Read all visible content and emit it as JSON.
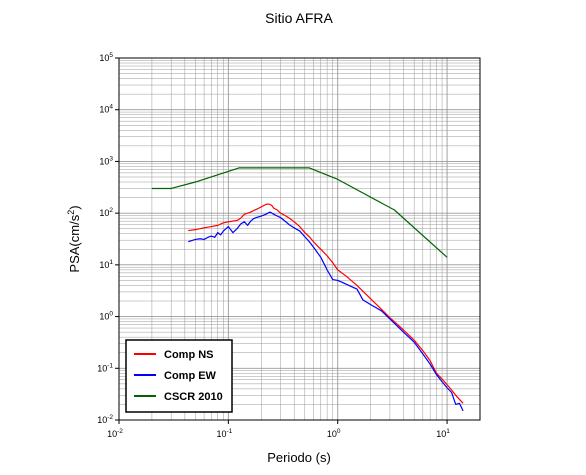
{
  "chart_data": {
    "type": "line",
    "title": "Sitio AFRA",
    "xlabel": "Periodo (s)",
    "ylabel_base": "PSA(cm/s",
    "ylabel_sup": "2",
    "ylabel_end": ")",
    "x_scale": "log",
    "y_scale": "log",
    "xlim": [
      0.01,
      20
    ],
    "ylim": [
      0.01,
      100000
    ],
    "grid": true,
    "legend_position": "bottom-left",
    "x_ticks": [
      {
        "base": "10",
        "exp": "-2",
        "value": 0.01
      },
      {
        "base": "10",
        "exp": "-1",
        "value": 0.1
      },
      {
        "base": "10",
        "exp": "0",
        "value": 1
      },
      {
        "base": "10",
        "exp": "1",
        "value": 10
      }
    ],
    "y_ticks": [
      {
        "base": "10",
        "exp": "-2",
        "value": 0.01
      },
      {
        "base": "10",
        "exp": "-1",
        "value": 0.1
      },
      {
        "base": "10",
        "exp": "0",
        "value": 1
      },
      {
        "base": "10",
        "exp": "1",
        "value": 10
      },
      {
        "base": "10",
        "exp": "2",
        "value": 100
      },
      {
        "base": "10",
        "exp": "3",
        "value": 1000
      },
      {
        "base": "10",
        "exp": "4",
        "value": 10000
      },
      {
        "base": "10",
        "exp": "5",
        "value": 100000
      }
    ],
    "series": [
      {
        "name": "Comp NS",
        "color": "#ff0000",
        "points": [
          [
            0.043,
            46
          ],
          [
            0.05,
            48
          ],
          [
            0.055,
            50
          ],
          [
            0.06,
            52
          ],
          [
            0.07,
            55
          ],
          [
            0.08,
            58
          ],
          [
            0.09,
            65
          ],
          [
            0.1,
            68
          ],
          [
            0.11,
            70
          ],
          [
            0.12,
            72
          ],
          [
            0.13,
            80
          ],
          [
            0.14,
            95
          ],
          [
            0.15,
            100
          ],
          [
            0.16,
            105
          ],
          [
            0.17,
            112
          ],
          [
            0.18,
            118
          ],
          [
            0.19,
            125
          ],
          [
            0.2,
            132
          ],
          [
            0.21,
            140
          ],
          [
            0.22,
            147
          ],
          [
            0.23,
            150
          ],
          [
            0.24,
            148
          ],
          [
            0.25,
            140
          ],
          [
            0.26,
            125
          ],
          [
            0.28,
            115
          ],
          [
            0.3,
            100
          ],
          [
            0.33,
            90
          ],
          [
            0.36,
            80
          ],
          [
            0.4,
            68
          ],
          [
            0.45,
            55
          ],
          [
            0.5,
            42
          ],
          [
            0.55,
            35
          ],
          [
            0.6,
            28
          ],
          [
            0.7,
            20
          ],
          [
            0.8,
            15
          ],
          [
            0.9,
            11
          ],
          [
            1.0,
            8
          ],
          [
            1.2,
            6
          ],
          [
            1.5,
            4
          ],
          [
            2.0,
            2.2
          ],
          [
            2.5,
            1.4
          ],
          [
            3.0,
            0.95
          ],
          [
            4.0,
            0.55
          ],
          [
            5.0,
            0.35
          ],
          [
            6.0,
            0.22
          ],
          [
            7.0,
            0.14
          ],
          [
            8.0,
            0.08
          ],
          [
            9.0,
            0.062
          ],
          [
            10.0,
            0.048
          ],
          [
            11.0,
            0.038
          ],
          [
            12.0,
            0.03
          ],
          [
            14.0,
            0.021
          ]
        ]
      },
      {
        "name": "Comp EW",
        "color": "#0000ff",
        "points": [
          [
            0.043,
            28
          ],
          [
            0.05,
            31
          ],
          [
            0.055,
            32
          ],
          [
            0.06,
            31
          ],
          [
            0.065,
            34
          ],
          [
            0.07,
            36
          ],
          [
            0.075,
            34
          ],
          [
            0.08,
            42
          ],
          [
            0.085,
            38
          ],
          [
            0.09,
            45
          ],
          [
            0.1,
            55
          ],
          [
            0.11,
            42
          ],
          [
            0.12,
            50
          ],
          [
            0.13,
            62
          ],
          [
            0.14,
            68
          ],
          [
            0.15,
            58
          ],
          [
            0.16,
            70
          ],
          [
            0.17,
            78
          ],
          [
            0.18,
            82
          ],
          [
            0.2,
            88
          ],
          [
            0.22,
            95
          ],
          [
            0.24,
            105
          ],
          [
            0.26,
            95
          ],
          [
            0.28,
            88
          ],
          [
            0.3,
            82
          ],
          [
            0.33,
            70
          ],
          [
            0.36,
            60
          ],
          [
            0.4,
            52
          ],
          [
            0.45,
            45
          ],
          [
            0.5,
            35
          ],
          [
            0.55,
            28
          ],
          [
            0.6,
            22
          ],
          [
            0.7,
            14
          ],
          [
            0.8,
            8
          ],
          [
            0.9,
            5.2
          ],
          [
            1.0,
            5
          ],
          [
            1.1,
            4.6
          ],
          [
            1.2,
            4.2
          ],
          [
            1.5,
            3.4
          ],
          [
            1.7,
            2.1
          ],
          [
            2.0,
            1.7
          ],
          [
            2.5,
            1.3
          ],
          [
            3.0,
            0.9
          ],
          [
            4.0,
            0.5
          ],
          [
            5.0,
            0.32
          ],
          [
            6.0,
            0.19
          ],
          [
            7.0,
            0.12
          ],
          [
            8.0,
            0.075
          ],
          [
            9.0,
            0.055
          ],
          [
            10.0,
            0.042
          ],
          [
            11.0,
            0.034
          ],
          [
            12.0,
            0.02
          ],
          [
            13.0,
            0.021
          ],
          [
            14.0,
            0.015
          ]
        ]
      },
      {
        "name": "CSCR 2010",
        "color": "#006400",
        "points": [
          [
            0.02,
            300
          ],
          [
            0.03,
            300
          ],
          [
            0.05,
            400
          ],
          [
            0.125,
            750
          ],
          [
            0.55,
            750
          ],
          [
            1.0,
            450
          ],
          [
            3.3,
            115
          ],
          [
            10.0,
            14
          ]
        ]
      }
    ]
  }
}
